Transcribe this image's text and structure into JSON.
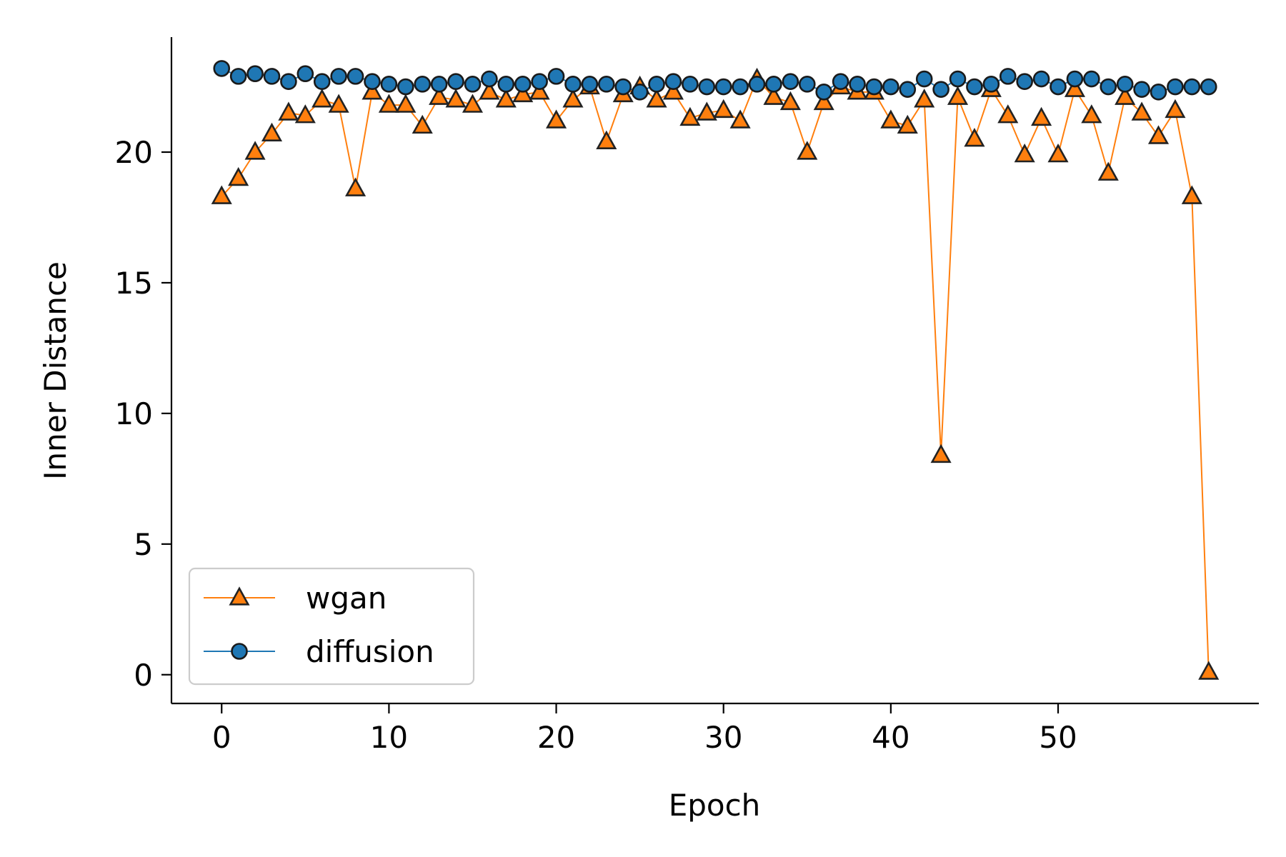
{
  "chart_data": {
    "type": "line",
    "title": "",
    "xlabel": "Epoch",
    "ylabel": "Inner Distance",
    "xlim": [
      -3,
      62
    ],
    "ylim": [
      -1.1,
      24.4
    ],
    "x_ticks": [
      0,
      10,
      20,
      30,
      40,
      50
    ],
    "y_ticks": [
      0,
      5,
      10,
      15,
      20
    ],
    "grid": false,
    "legend_position": "lower-left",
    "x": [
      0,
      1,
      2,
      3,
      4,
      5,
      6,
      7,
      8,
      9,
      10,
      11,
      12,
      13,
      14,
      15,
      16,
      17,
      18,
      19,
      20,
      21,
      22,
      23,
      24,
      25,
      26,
      27,
      28,
      29,
      30,
      31,
      32,
      33,
      34,
      35,
      36,
      37,
      38,
      39,
      40,
      41,
      42,
      43,
      44,
      45,
      46,
      47,
      48,
      49,
      50,
      51,
      52,
      53,
      54,
      55,
      56,
      57,
      58,
      59
    ],
    "series": [
      {
        "name": "wgan",
        "color": "#ff7f0e",
        "marker": "triangle",
        "values": [
          18.3,
          19.0,
          20.0,
          20.7,
          21.5,
          21.4,
          22.0,
          21.8,
          18.6,
          22.3,
          21.8,
          21.8,
          21.0,
          22.1,
          22.0,
          21.8,
          22.3,
          22.0,
          22.2,
          22.3,
          21.2,
          22.0,
          22.5,
          20.4,
          22.2,
          22.5,
          22.0,
          22.3,
          21.3,
          21.5,
          21.6,
          21.2,
          22.8,
          22.1,
          21.9,
          20.0,
          21.9,
          22.5,
          22.3,
          22.3,
          21.2,
          21.0,
          22.0,
          8.4,
          22.1,
          20.5,
          22.4,
          21.4,
          19.9,
          21.3,
          19.9,
          22.4,
          21.4,
          19.2,
          22.1,
          21.5,
          20.6,
          21.6,
          18.3,
          0.1
        ]
      },
      {
        "name": "diffusion",
        "color": "#1f77b4",
        "marker": "circle",
        "values": [
          23.2,
          22.9,
          23.0,
          22.9,
          22.7,
          23.0,
          22.7,
          22.9,
          22.9,
          22.7,
          22.6,
          22.5,
          22.6,
          22.6,
          22.7,
          22.6,
          22.8,
          22.6,
          22.6,
          22.7,
          22.9,
          22.6,
          22.6,
          22.6,
          22.5,
          22.3,
          22.6,
          22.7,
          22.6,
          22.5,
          22.5,
          22.5,
          22.6,
          22.6,
          22.7,
          22.6,
          22.3,
          22.7,
          22.6,
          22.5,
          22.5,
          22.4,
          22.8,
          22.4,
          22.8,
          22.5,
          22.6,
          22.9,
          22.7,
          22.8,
          22.5,
          22.8,
          22.8,
          22.5,
          22.6,
          22.4,
          22.3,
          22.5,
          22.5,
          22.5
        ]
      }
    ]
  }
}
